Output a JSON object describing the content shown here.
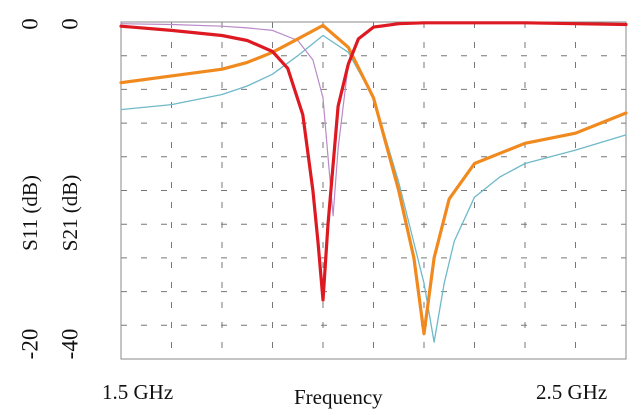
{
  "chart_data": {
    "type": "line",
    "xlabel": "Frequency",
    "xrange": [
      1.5,
      2.5
    ],
    "x_tick_labels": [
      "1.5 GHz",
      "2.5 GHz"
    ],
    "y_axes": [
      {
        "label": "S11 (dB)",
        "range": [
          -20,
          0
        ],
        "tick_labels": [
          "0",
          "-20"
        ]
      },
      {
        "label": "S21 (dB)",
        "range": [
          -40,
          0
        ],
        "tick_labels": [
          "0",
          "-40"
        ]
      }
    ],
    "grid": true,
    "series": [
      {
        "axis": "S21 (dB)",
        "color": "#dd1a22",
        "x": [
          1.5,
          1.6,
          1.7,
          1.75,
          1.8,
          1.83,
          1.86,
          1.88,
          1.89,
          1.9,
          1.91,
          1.93,
          1.95,
          1.97,
          2.0,
          2.05,
          2.1,
          2.2,
          2.3,
          2.4,
          2.5
        ],
        "y": [
          -0.5,
          -1.0,
          -1.6,
          -2.2,
          -3.5,
          -5.5,
          -11,
          -20,
          -26,
          -33,
          -24,
          -10,
          -5,
          -2,
          -0.6,
          -0.2,
          -0.1,
          -0.1,
          -0.1,
          -0.2,
          -0.3
        ]
      },
      {
        "axis": "S21 (dB)",
        "color": "#b98ac8",
        "x": [
          1.5,
          1.6,
          1.7,
          1.75,
          1.8,
          1.85,
          1.88,
          1.9,
          1.91,
          1.92,
          1.93,
          1.95,
          1.97,
          2.0,
          2.05,
          2.1
        ],
        "y": [
          -0.2,
          -0.3,
          -0.5,
          -0.7,
          -1.0,
          -2.2,
          -4.5,
          -9,
          -16,
          -23,
          -15,
          -5,
          -2,
          -0.6,
          -0.2,
          -0.1
        ]
      },
      {
        "axis": "S11 (dB)",
        "color": "#f18a1e",
        "x": [
          1.5,
          1.6,
          1.7,
          1.75,
          1.8,
          1.85,
          1.9,
          1.95,
          2.0,
          2.05,
          2.08,
          2.1,
          2.12,
          2.15,
          2.2,
          2.3,
          2.4,
          2.5
        ],
        "y": [
          -3.6,
          -3.2,
          -2.8,
          -2.4,
          -1.8,
          -1.0,
          -0.2,
          -1.5,
          -4.5,
          -10,
          -14,
          -18.5,
          -14,
          -10.5,
          -8.4,
          -7.2,
          -6.6,
          -5.4
        ]
      },
      {
        "axis": "S11 (dB)",
        "color": "#6fb9c8",
        "x": [
          1.5,
          1.6,
          1.7,
          1.75,
          1.8,
          1.85,
          1.9,
          1.95,
          2.0,
          2.05,
          2.1,
          2.12,
          2.14,
          2.16,
          2.2,
          2.25,
          2.3,
          2.4,
          2.5
        ],
        "y": [
          -5.2,
          -4.9,
          -4.3,
          -3.8,
          -3.1,
          -2.0,
          -0.8,
          -1.8,
          -4.5,
          -9.5,
          -15.5,
          -19,
          -15.5,
          -13,
          -10.4,
          -9.2,
          -8.4,
          -7.6,
          -6.7
        ]
      }
    ]
  }
}
